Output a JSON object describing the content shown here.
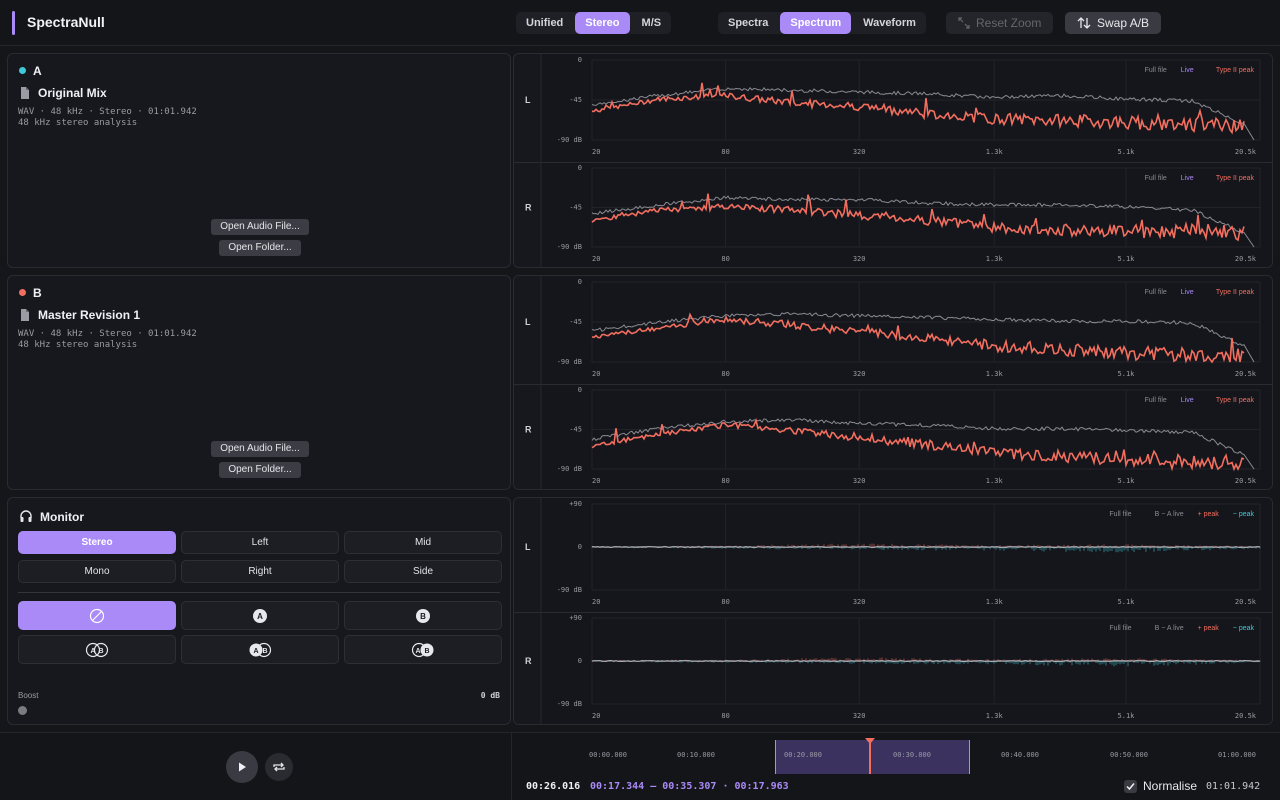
{
  "app": {
    "title": "SpectraNull",
    "accent": "#a98af7",
    "mode_tabs": [
      {
        "label": "Unified",
        "active": false
      },
      {
        "label": "Stereo",
        "active": true
      },
      {
        "label": "M/S",
        "active": false
      }
    ],
    "view_tabs": [
      {
        "label": "Spectra",
        "active": false
      },
      {
        "label": "Spectrum",
        "active": true
      },
      {
        "label": "Waveform",
        "active": false
      }
    ],
    "reset_zoom_label": "Reset Zoom",
    "swap_label": "Swap A/B"
  },
  "files": [
    {
      "letter": "A",
      "dot_color": "#3ec8d8",
      "name": "Original Mix",
      "meta": "WAV · 48 kHz · Stereo · 01:01.942",
      "analysis": "48 kHz stereo analysis",
      "open_file_label": "Open Audio File...",
      "open_folder_label": "Open Folder..."
    },
    {
      "letter": "B",
      "dot_color": "#f26e5f",
      "name": "Master Revision 1",
      "meta": "WAV · 48 kHz · Stereo · 01:01.942",
      "analysis": "48 kHz stereo analysis",
      "open_file_label": "Open Audio File...",
      "open_folder_label": "Open Folder..."
    }
  ],
  "monitor": {
    "title": "Monitor",
    "channel_buttons": [
      {
        "label": "Stereo",
        "active": true
      },
      {
        "label": "Left",
        "active": false
      },
      {
        "label": "Mid",
        "active": false
      },
      {
        "label": "Mono",
        "active": false
      },
      {
        "label": "Right",
        "active": false
      },
      {
        "label": "Side",
        "active": false
      }
    ],
    "source_buttons": [
      {
        "icon": "mute-icon",
        "active": true
      },
      {
        "icon": "source-a-icon",
        "active": false
      },
      {
        "icon": "source-b-icon",
        "active": false
      },
      {
        "icon": "a-minus-b-icon",
        "active": false
      },
      {
        "icon": "a-over-b-icon",
        "active": false
      },
      {
        "icon": "b-over-a-icon",
        "active": false
      }
    ],
    "boost_label": "Boost",
    "boost_value": "0 dB",
    "boost_level": 0
  },
  "chart_common": {
    "freq_ticks": [
      "20",
      "80",
      "320",
      "1.3k",
      "5.1k",
      "20.5k"
    ],
    "db_ticks_spectrum": [
      "0",
      "-45",
      "-90 dB"
    ],
    "db_ticks_diff": [
      "+90",
      "0",
      "-90 dB"
    ],
    "legend_spectrum": [
      "Full file",
      "Live",
      "Type II peak"
    ],
    "legend_diff": [
      "Full file",
      "B − A live",
      "+ peak",
      "− peak"
    ],
    "colors": {
      "full_file": "#8a8b92",
      "live": "#a98af7",
      "peak": "#f26e5f",
      "neg_peak": "#3ec8d8"
    }
  },
  "chart_data": [
    {
      "type": "line",
      "title": "",
      "panel": "A",
      "channel": "L",
      "xlabel": "",
      "ylabel": "",
      "ylim": [
        -90,
        0
      ],
      "x_scale": "log",
      "x": [
        20,
        40,
        80,
        160,
        320,
        640,
        1300,
        2600,
        5100,
        10200,
        20500
      ],
      "series": [
        {
          "name": "Full file",
          "values": [
            -50,
            -40,
            -32,
            -34,
            -36,
            -38,
            -42,
            -40,
            -44,
            -46,
            -80
          ]
        },
        {
          "name": "Type II peak",
          "values": [
            -58,
            -44,
            -40,
            -48,
            -52,
            -60,
            -66,
            -68,
            -70,
            -72,
            -74
          ]
        }
      ]
    },
    {
      "type": "line",
      "title": "",
      "panel": "A",
      "channel": "R",
      "xlabel": "",
      "ylabel": "",
      "ylim": [
        -90,
        0
      ],
      "x_scale": "log",
      "x": [
        20,
        40,
        80,
        160,
        320,
        640,
        1300,
        2600,
        5100,
        10200,
        20500
      ],
      "series": [
        {
          "name": "Full file",
          "values": [
            -52,
            -42,
            -34,
            -36,
            -36,
            -40,
            -42,
            -42,
            -44,
            -48,
            -82
          ]
        },
        {
          "name": "Type II peak",
          "values": [
            -60,
            -48,
            -44,
            -48,
            -54,
            -60,
            -68,
            -70,
            -72,
            -72,
            -74
          ]
        }
      ]
    },
    {
      "type": "line",
      "title": "",
      "panel": "B",
      "channel": "L",
      "xlabel": "",
      "ylabel": "",
      "ylim": [
        -90,
        0
      ],
      "x_scale": "log",
      "x": [
        20,
        40,
        80,
        160,
        320,
        640,
        1300,
        2600,
        5100,
        10200,
        20500
      ],
      "series": [
        {
          "name": "Full file",
          "values": [
            -55,
            -45,
            -38,
            -36,
            -38,
            -40,
            -42,
            -44,
            -44,
            -46,
            -80
          ]
        },
        {
          "name": "Type II peak",
          "values": [
            -62,
            -52,
            -42,
            -48,
            -56,
            -62,
            -72,
            -76,
            -80,
            -82,
            -84
          ]
        }
      ]
    },
    {
      "type": "line",
      "title": "",
      "panel": "B",
      "channel": "R",
      "xlabel": "",
      "ylabel": "",
      "ylim": [
        -90,
        0
      ],
      "x_scale": "log",
      "x": [
        20,
        40,
        80,
        160,
        320,
        640,
        1300,
        2600,
        5100,
        10200,
        20500
      ],
      "series": [
        {
          "name": "Full file",
          "values": [
            -56,
            -44,
            -36,
            -34,
            -38,
            -40,
            -44,
            -44,
            -46,
            -48,
            -82
          ]
        },
        {
          "name": "Type II peak",
          "values": [
            -64,
            -50,
            -40,
            -46,
            -54,
            -62,
            -72,
            -76,
            -80,
            -82,
            -84
          ]
        }
      ]
    },
    {
      "type": "line",
      "title": "",
      "panel": "B − A",
      "channel": "L",
      "xlabel": "",
      "ylabel": "",
      "ylim": [
        -90,
        90
      ],
      "x_scale": "log",
      "x": [
        20,
        80,
        320,
        1300,
        5100,
        20500
      ],
      "series": [
        {
          "name": "Full file",
          "values": [
            0,
            0,
            0,
            0,
            0,
            0
          ]
        },
        {
          "name": "+ peak",
          "values": [
            2,
            3,
            8,
            4,
            6,
            2
          ]
        },
        {
          "name": "− peak",
          "values": [
            -2,
            -4,
            -6,
            -8,
            -12,
            -4
          ]
        }
      ]
    },
    {
      "type": "line",
      "title": "",
      "panel": "B − A",
      "channel": "R",
      "xlabel": "",
      "ylabel": "",
      "ylim": [
        -90,
        90
      ],
      "x_scale": "log",
      "x": [
        20,
        80,
        320,
        1300,
        5100,
        20500
      ],
      "series": [
        {
          "name": "Full file",
          "values": [
            0,
            0,
            0,
            0,
            0,
            0
          ]
        },
        {
          "name": "+ peak",
          "values": [
            2,
            3,
            8,
            4,
            6,
            2
          ]
        },
        {
          "name": "− peak",
          "values": [
            -2,
            -4,
            -6,
            -8,
            -12,
            -4
          ]
        }
      ]
    }
  ],
  "transport": {
    "timeline_ticks": [
      "00:00.000",
      "00:10.000",
      "00:20.000",
      "00:30.000",
      "00:40.000",
      "00:50.000",
      "01:00.000"
    ],
    "current_time": "00:26.016",
    "selection": "00:17.344 — 00:35.307 · 00:17.963",
    "normalise_label": "Normalise",
    "normalise_checked": true,
    "total_time": "01:01.942"
  }
}
